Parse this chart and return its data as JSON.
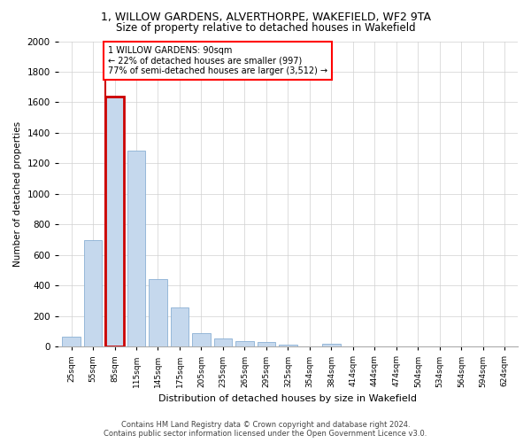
{
  "title": "1, WILLOW GARDENS, ALVERTHORPE, WAKEFIELD, WF2 9TA",
  "subtitle": "Size of property relative to detached houses in Wakefield",
  "xlabel": "Distribution of detached houses by size in Wakefield",
  "ylabel": "Number of detached properties",
  "bar_color": "#c5d8ed",
  "bar_edge_color": "#8ab0d4",
  "highlight_edge_color": "#cc0000",
  "highlight_line_color": "#cc0000",
  "categories": [
    "25sqm",
    "55sqm",
    "85sqm",
    "115sqm",
    "145sqm",
    "175sqm",
    "205sqm",
    "235sqm",
    "265sqm",
    "295sqm",
    "325sqm",
    "354sqm",
    "384sqm",
    "414sqm",
    "444sqm",
    "474sqm",
    "504sqm",
    "534sqm",
    "564sqm",
    "594sqm",
    "624sqm"
  ],
  "values": [
    65,
    695,
    1635,
    1285,
    445,
    255,
    88,
    52,
    38,
    28,
    15,
    0,
    18,
    0,
    0,
    0,
    0,
    0,
    0,
    0,
    0
  ],
  "ylim": [
    0,
    2000
  ],
  "yticks": [
    0,
    200,
    400,
    600,
    800,
    1000,
    1200,
    1400,
    1600,
    1800,
    2000
  ],
  "property_bin_index": 2,
  "annotation_line1": "1 WILLOW GARDENS: 90sqm",
  "annotation_line2": "← 22% of detached houses are smaller (997)",
  "annotation_line3": "77% of semi-detached houses are larger (3,512) →",
  "footer_line1": "Contains HM Land Registry data © Crown copyright and database right 2024.",
  "footer_line2": "Contains public sector information licensed under the Open Government Licence v3.0.",
  "background_color": "#ffffff",
  "grid_color": "#d0d0d0"
}
